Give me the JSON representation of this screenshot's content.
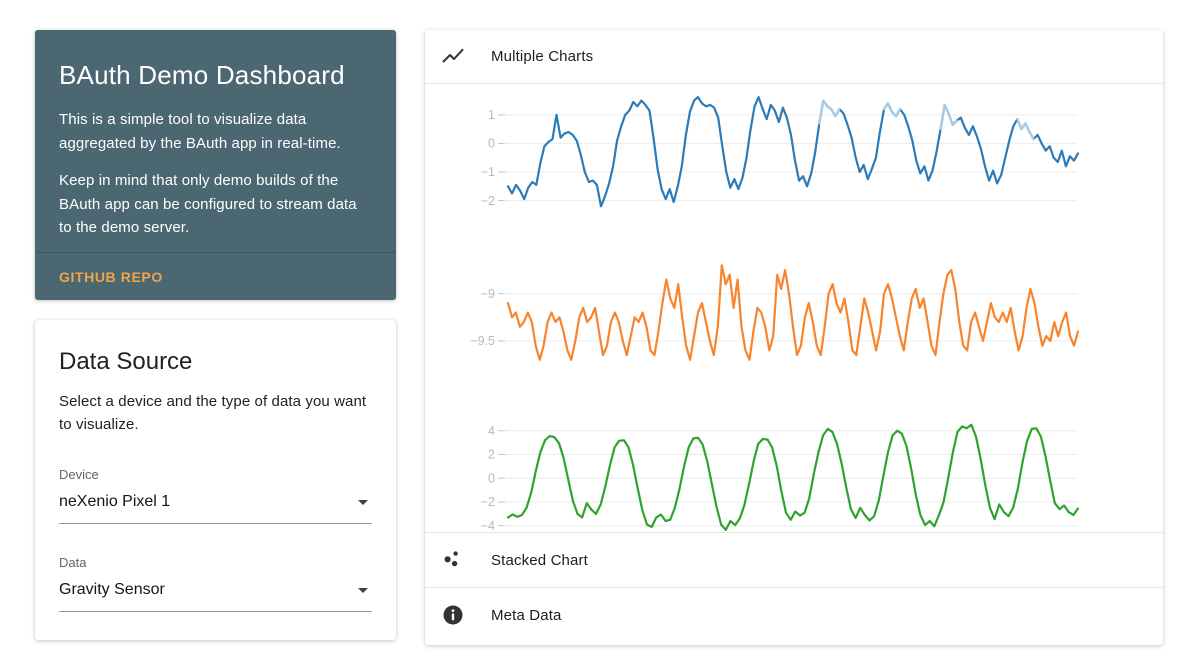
{
  "intro_card": {
    "title": "BAuth Demo Dashboard",
    "paragraph1": "This is a simple tool to visualize data aggregated by the BAuth app in real-time.",
    "paragraph2": "Keep in mind that only demo builds of the BAuth app can be configured to stream data to the demo server.",
    "link_label": "GITHUB REPO",
    "colors": {
      "background": "#4b6772",
      "link": "#f2a34c",
      "text": "#ffffff"
    }
  },
  "data_source_card": {
    "title": "Data Source",
    "description": "Select a device and the type of data you want to visualize.",
    "device_field": {
      "label": "Device",
      "value": "neXenio Pixel 1"
    },
    "data_field": {
      "label": "Data",
      "value": "Gravity Sensor"
    }
  },
  "panel": {
    "sections": [
      {
        "label": "Multiple Charts",
        "icon": "line-chart-icon",
        "expanded": true
      },
      {
        "label": "Stacked Chart",
        "icon": "bubble-chart-icon",
        "expanded": false
      },
      {
        "label": "Meta Data",
        "icon": "info-icon",
        "expanded": false
      }
    ]
  },
  "chart_data": {
    "type": "line",
    "title": "Multiple Charts",
    "xlabel": "",
    "ylabel": "",
    "x_tick_labels": [],
    "grid": true,
    "legend": false,
    "charts": [
      {
        "name": "blue",
        "color": "#2b7bb9",
        "light_color": "#a9cbe4",
        "ylim": [
          -2.4,
          1.8
        ],
        "yticks": [
          {
            "label": "1",
            "value": 1
          },
          {
            "label": "0",
            "value": 0
          },
          {
            "label": "−1",
            "value": -1
          },
          {
            "label": "−2",
            "value": -2
          }
        ],
        "values": [
          -1.5,
          -1.75,
          -1.45,
          -1.65,
          -1.95,
          -1.55,
          -1.35,
          -1.45,
          -0.7,
          -0.1,
          0.05,
          0.15,
          1.0,
          0.2,
          0.35,
          0.4,
          0.3,
          0.1,
          -0.4,
          -1.0,
          -1.35,
          -1.3,
          -1.45,
          -2.2,
          -1.85,
          -1.4,
          -0.8,
          0.1,
          0.6,
          1.0,
          1.15,
          1.45,
          1.3,
          1.5,
          1.35,
          1.15,
          0.2,
          -0.9,
          -1.6,
          -1.95,
          -1.6,
          -2.05,
          -1.5,
          -0.8,
          0.3,
          1.1,
          1.5,
          1.62,
          1.4,
          1.3,
          1.35,
          1.25,
          0.9,
          -0.1,
          -1.0,
          -1.55,
          -1.25,
          -1.6,
          -1.2,
          -0.5,
          0.5,
          1.3,
          1.62,
          1.2,
          0.85,
          1.35,
          1.15,
          0.75,
          1.25,
          0.9,
          0.3,
          -0.6,
          -1.3,
          -1.15,
          -1.5,
          -1.05,
          -0.3,
          0.7,
          1.5,
          1.3,
          1.2,
          0.95,
          1.2,
          1.05,
          0.65,
          0.2,
          -0.5,
          -1.0,
          -0.75,
          -1.25,
          -0.9,
          -0.5,
          0.4,
          1.2,
          1.4,
          1.1,
          0.95,
          1.2,
          1.0,
          0.6,
          0.1,
          -0.6,
          -1.05,
          -0.8,
          -1.3,
          -0.95,
          -0.3,
          0.5,
          1.35,
          1.05,
          0.65,
          0.8,
          0.9,
          0.55,
          0.3,
          0.6,
          0.25,
          -0.2,
          -0.8,
          -1.3,
          -0.95,
          -1.4,
          -1.1,
          -0.5,
          0.1,
          0.6,
          0.85,
          0.5,
          0.7,
          0.4,
          0.15,
          0.3,
          0.0,
          -0.25,
          -0.1,
          -0.5,
          -0.65,
          -0.25,
          -0.8,
          -0.45,
          -0.6,
          -0.35
        ],
        "light_segments": [
          [
            77,
            82
          ],
          [
            93,
            97
          ],
          [
            107,
            111
          ],
          [
            126,
            130
          ]
        ]
      },
      {
        "name": "orange",
        "color": "#f8842c",
        "ylim": [
          -9.85,
          -8.58
        ],
        "yticks": [
          {
            "label": "−9",
            "value": -9
          },
          {
            "label": "−9.5",
            "value": -9.5
          }
        ],
        "values": [
          -9.1,
          -9.25,
          -9.2,
          -9.35,
          -9.3,
          -9.2,
          -9.3,
          -9.55,
          -9.7,
          -9.55,
          -9.3,
          -9.2,
          -9.3,
          -9.25,
          -9.4,
          -9.6,
          -9.7,
          -9.5,
          -9.25,
          -9.15,
          -9.3,
          -9.25,
          -9.15,
          -9.4,
          -9.65,
          -9.55,
          -9.3,
          -9.2,
          -9.3,
          -9.5,
          -9.65,
          -9.45,
          -9.25,
          -9.3,
          -9.2,
          -9.35,
          -9.6,
          -9.65,
          -9.4,
          -9.1,
          -8.85,
          -9.05,
          -9.15,
          -8.9,
          -9.25,
          -9.55,
          -9.7,
          -9.45,
          -9.2,
          -9.1,
          -9.3,
          -9.5,
          -9.65,
          -9.35,
          -8.7,
          -8.9,
          -8.8,
          -9.15,
          -8.85,
          -9.35,
          -9.6,
          -9.7,
          -9.4,
          -9.15,
          -9.2,
          -9.35,
          -9.6,
          -9.45,
          -8.8,
          -8.95,
          -8.75,
          -9.0,
          -9.35,
          -9.65,
          -9.55,
          -9.25,
          -9.1,
          -9.3,
          -9.55,
          -9.65,
          -9.35,
          -9.0,
          -8.9,
          -9.1,
          -9.2,
          -9.05,
          -9.3,
          -9.6,
          -9.65,
          -9.35,
          -9.05,
          -9.2,
          -9.4,
          -9.6,
          -9.4,
          -9.0,
          -8.9,
          -9.05,
          -9.25,
          -9.45,
          -9.6,
          -9.3,
          -9.05,
          -8.95,
          -9.15,
          -9.05,
          -9.3,
          -9.55,
          -9.65,
          -9.3,
          -9.0,
          -8.8,
          -8.75,
          -8.95,
          -9.3,
          -9.55,
          -9.6,
          -9.3,
          -9.2,
          -9.35,
          -9.5,
          -9.3,
          -9.1,
          -9.25,
          -9.3,
          -9.2,
          -9.3,
          -9.15,
          -9.4,
          -9.6,
          -9.45,
          -9.15,
          -8.95,
          -9.1,
          -9.35,
          -9.55,
          -9.45,
          -9.5,
          -9.3,
          -9.45,
          -9.3,
          -9.2,
          -9.45,
          -9.55,
          -9.4
        ]
      },
      {
        "name": "green",
        "color": "#2fa32e",
        "ylim": [
          -5.2,
          4.9
        ],
        "yticks": [
          {
            "label": "4",
            "value": 4
          },
          {
            "label": "2",
            "value": 2
          },
          {
            "label": "0",
            "value": 0
          },
          {
            "label": "−2",
            "value": -2
          },
          {
            "label": "−4",
            "value": -4
          }
        ],
        "values": [
          -3.3,
          -3.05,
          -3.25,
          -3.1,
          -2.5,
          -1.2,
          0.6,
          2.2,
          3.2,
          3.55,
          3.45,
          2.95,
          1.7,
          -0.1,
          -1.9,
          -3.0,
          -3.3,
          -2.1,
          -2.65,
          -3.0,
          -2.2,
          -0.7,
          1.1,
          2.6,
          3.15,
          3.2,
          2.6,
          1.1,
          -0.9,
          -2.7,
          -3.9,
          -4.1,
          -3.3,
          -3.05,
          -3.6,
          -3.5,
          -2.5,
          -0.9,
          1.0,
          2.6,
          3.35,
          3.4,
          2.85,
          1.4,
          -0.5,
          -2.4,
          -3.9,
          -4.35,
          -3.6,
          -3.95,
          -3.4,
          -2.3,
          -0.5,
          1.4,
          2.9,
          3.3,
          3.25,
          2.6,
          1.0,
          -1.1,
          -2.9,
          -3.5,
          -2.8,
          -3.15,
          -2.9,
          -1.7,
          0.4,
          2.2,
          3.6,
          4.15,
          3.9,
          2.9,
          1.2,
          -0.8,
          -2.6,
          -3.35,
          -2.5,
          -3.1,
          -3.55,
          -3.2,
          -1.9,
          0.2,
          2.2,
          3.6,
          4.0,
          3.75,
          2.7,
          0.8,
          -1.4,
          -3.1,
          -3.95,
          -3.6,
          -4.05,
          -3.1,
          -2.0,
          0.0,
          2.2,
          3.9,
          4.35,
          4.2,
          4.5,
          3.5,
          1.6,
          -0.6,
          -2.5,
          -3.45,
          -2.2,
          -2.85,
          -3.2,
          -2.5,
          -0.9,
          1.3,
          3.1,
          4.15,
          4.2,
          3.5,
          1.8,
          -0.2,
          -2.1,
          -2.6,
          -2.3,
          -2.85,
          -3.1,
          -2.55
        ]
      }
    ],
    "style": {
      "gridline_color": "#ececec",
      "tick_label_color": "#b9b9b9"
    }
  }
}
